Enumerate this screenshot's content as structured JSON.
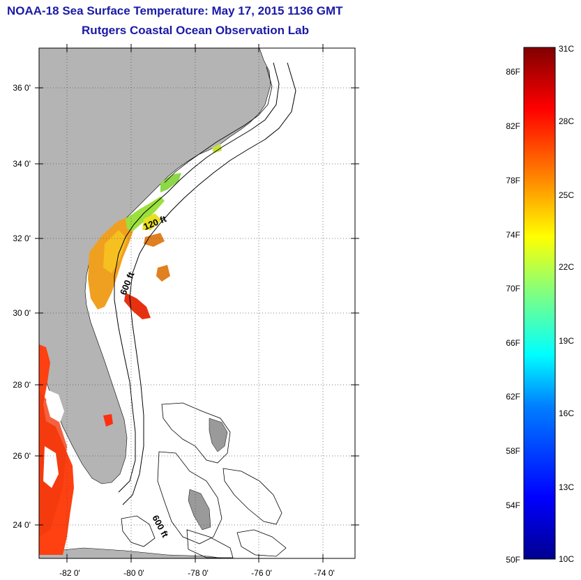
{
  "title": {
    "line1": "NOAA-18 Sea Surface Temperature:  May 17, 2015 1136 GMT",
    "line2": "Rutgers Coastal Ocean Observation Lab"
  },
  "map": {
    "lat_labels": [
      "36 0'",
      "34 0'",
      "32 0'",
      "30 0'",
      "28 0'",
      "26 0'",
      "24 0'"
    ],
    "lon_labels": [
      "-82 0'",
      "-80 0'",
      "-78 0'",
      "-76 0'",
      "-74 0'"
    ],
    "contour_labels": [
      "120 ft",
      "600 ft",
      "600 ft"
    ],
    "colors": {
      "land": "#b4b4b4",
      "ocean": "#ffffff",
      "grid": "#555555"
    }
  },
  "colorbar": {
    "fahrenheit_labels": [
      "86F",
      "82F",
      "78F",
      "74F",
      "70F",
      "66F",
      "62F",
      "58F",
      "54F",
      "50F"
    ],
    "celsius_labels": [
      "31C",
      "28C",
      "25C",
      "22C",
      "19C",
      "16C",
      "13C",
      "10C"
    ],
    "colors": [
      "#00008f",
      "#0000ff",
      "#0080ff",
      "#00ffff",
      "#80ff80",
      "#ffff00",
      "#ff8000",
      "#ff0000",
      "#800000"
    ]
  }
}
